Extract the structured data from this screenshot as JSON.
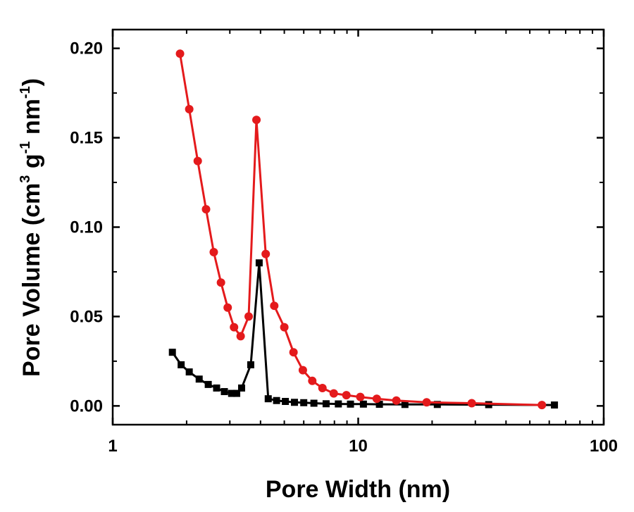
{
  "chart_data": {
    "type": "line",
    "xscale": "log",
    "xlabel": "Pore Width (nm)",
    "ylabel_parts": {
      "main": "Pore Volume (cm",
      "sup1": "3",
      "mid": " g",
      "sup2": "-1",
      "mid2": " nm",
      "sup3": "-1",
      "end": ")"
    },
    "xlim": [
      1,
      100
    ],
    "ylim": [
      -0.0105,
      0.2105
    ],
    "x_ticks": [
      1,
      10,
      100
    ],
    "x_tick_labels": [
      "1",
      "10",
      "100"
    ],
    "y_ticks": [
      0.0,
      0.05,
      0.1,
      0.15,
      0.2
    ],
    "y_tick_labels": [
      "0.00",
      "0.05",
      "0.10",
      "0.15",
      "0.20"
    ],
    "grid": false,
    "legend": "none",
    "series": [
      {
        "name": "black-squares",
        "color": "#000000",
        "marker": "square",
        "x": [
          1.75,
          1.9,
          2.05,
          2.25,
          2.45,
          2.65,
          2.85,
          3.05,
          3.2,
          3.35,
          3.65,
          3.95,
          4.3,
          4.65,
          5.05,
          5.5,
          6.0,
          6.6,
          7.4,
          8.3,
          9.3,
          10.5,
          12.2,
          15.5,
          21.0,
          34.0,
          63.0
        ],
        "y": [
          0.03,
          0.023,
          0.019,
          0.015,
          0.012,
          0.01,
          0.008,
          0.007,
          0.007,
          0.01,
          0.023,
          0.08,
          0.004,
          0.003,
          0.0025,
          0.002,
          0.0018,
          0.0015,
          0.0012,
          0.0011,
          0.001,
          0.001,
          0.0009,
          0.0008,
          0.0008,
          0.0007,
          0.0005
        ]
      },
      {
        "name": "red-circles",
        "color": "#e41a1c",
        "marker": "circle",
        "x": [
          1.88,
          2.05,
          2.22,
          2.4,
          2.58,
          2.76,
          2.94,
          3.12,
          3.32,
          3.58,
          3.85,
          4.2,
          4.55,
          5.0,
          5.45,
          5.95,
          6.5,
          7.15,
          7.95,
          8.95,
          10.2,
          11.9,
          14.3,
          19.0,
          29.0,
          56.0
        ],
        "y": [
          0.197,
          0.166,
          0.137,
          0.11,
          0.086,
          0.069,
          0.055,
          0.044,
          0.039,
          0.05,
          0.16,
          0.085,
          0.056,
          0.044,
          0.03,
          0.02,
          0.014,
          0.01,
          0.007,
          0.006,
          0.005,
          0.004,
          0.003,
          0.002,
          0.0015,
          0.0005
        ]
      }
    ]
  }
}
